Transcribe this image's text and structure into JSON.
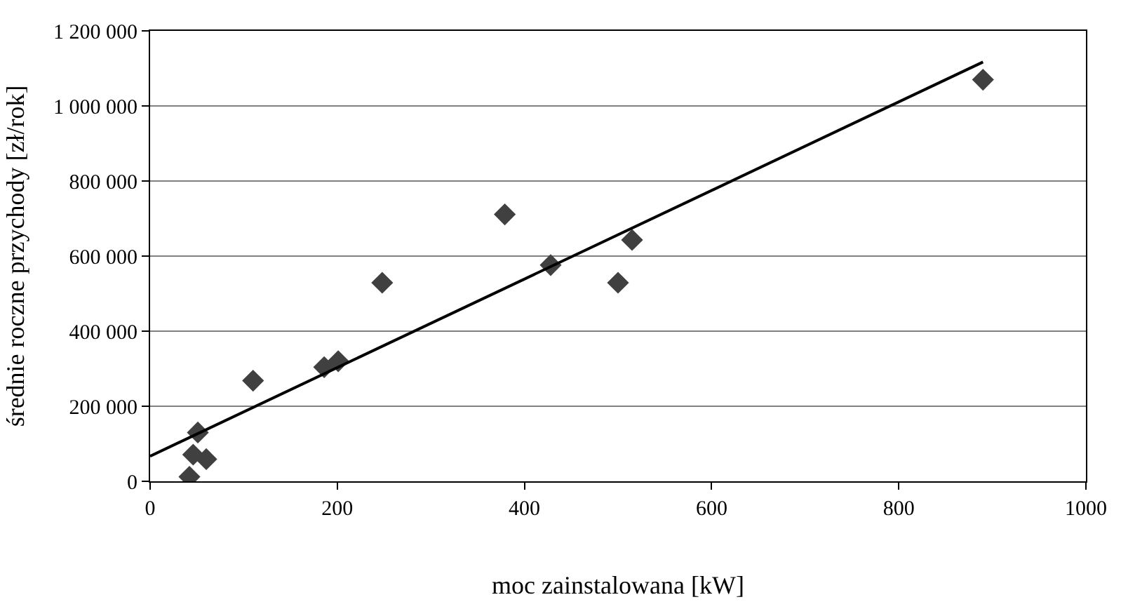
{
  "chart_data": {
    "type": "scatter",
    "xlabel": "moc zainstalowana [kW]",
    "ylabel": "średnie roczne przychody [zł/rok]",
    "x": [
      42,
      46,
      51,
      60,
      110,
      186,
      201,
      248,
      379,
      428,
      500,
      515,
      890
    ],
    "series": [
      {
        "color": "#404040",
        "marker": "diamond",
        "values": [
          12000,
          71000,
          130000,
          59000,
          268000,
          304000,
          320000,
          529000,
          711000,
          576000,
          529000,
          643000,
          1070000
        ]
      },
      {
        "type": "line",
        "color": "#000000",
        "marker": "none",
        "line_style": "solid",
        "x": [
          0,
          890
        ],
        "values": [
          67000,
          1117000
        ]
      }
    ],
    "xlim": [
      0,
      1000
    ],
    "xticks": [
      0,
      200,
      400,
      600,
      800,
      1000
    ],
    "ylim": [
      0,
      1200000
    ],
    "yticks": [
      {
        "value": 0,
        "label": "0"
      },
      {
        "value": 200000,
        "label": "200 000"
      },
      {
        "value": 400000,
        "label": "400 000"
      },
      {
        "value": 600000,
        "label": "600 000"
      },
      {
        "value": 800000,
        "label": "800 000"
      },
      {
        "value": 1000000,
        "label": "1 000 000"
      },
      {
        "value": 1200000,
        "label": "1 200 000"
      }
    ],
    "grid": "y",
    "legend": false
  }
}
